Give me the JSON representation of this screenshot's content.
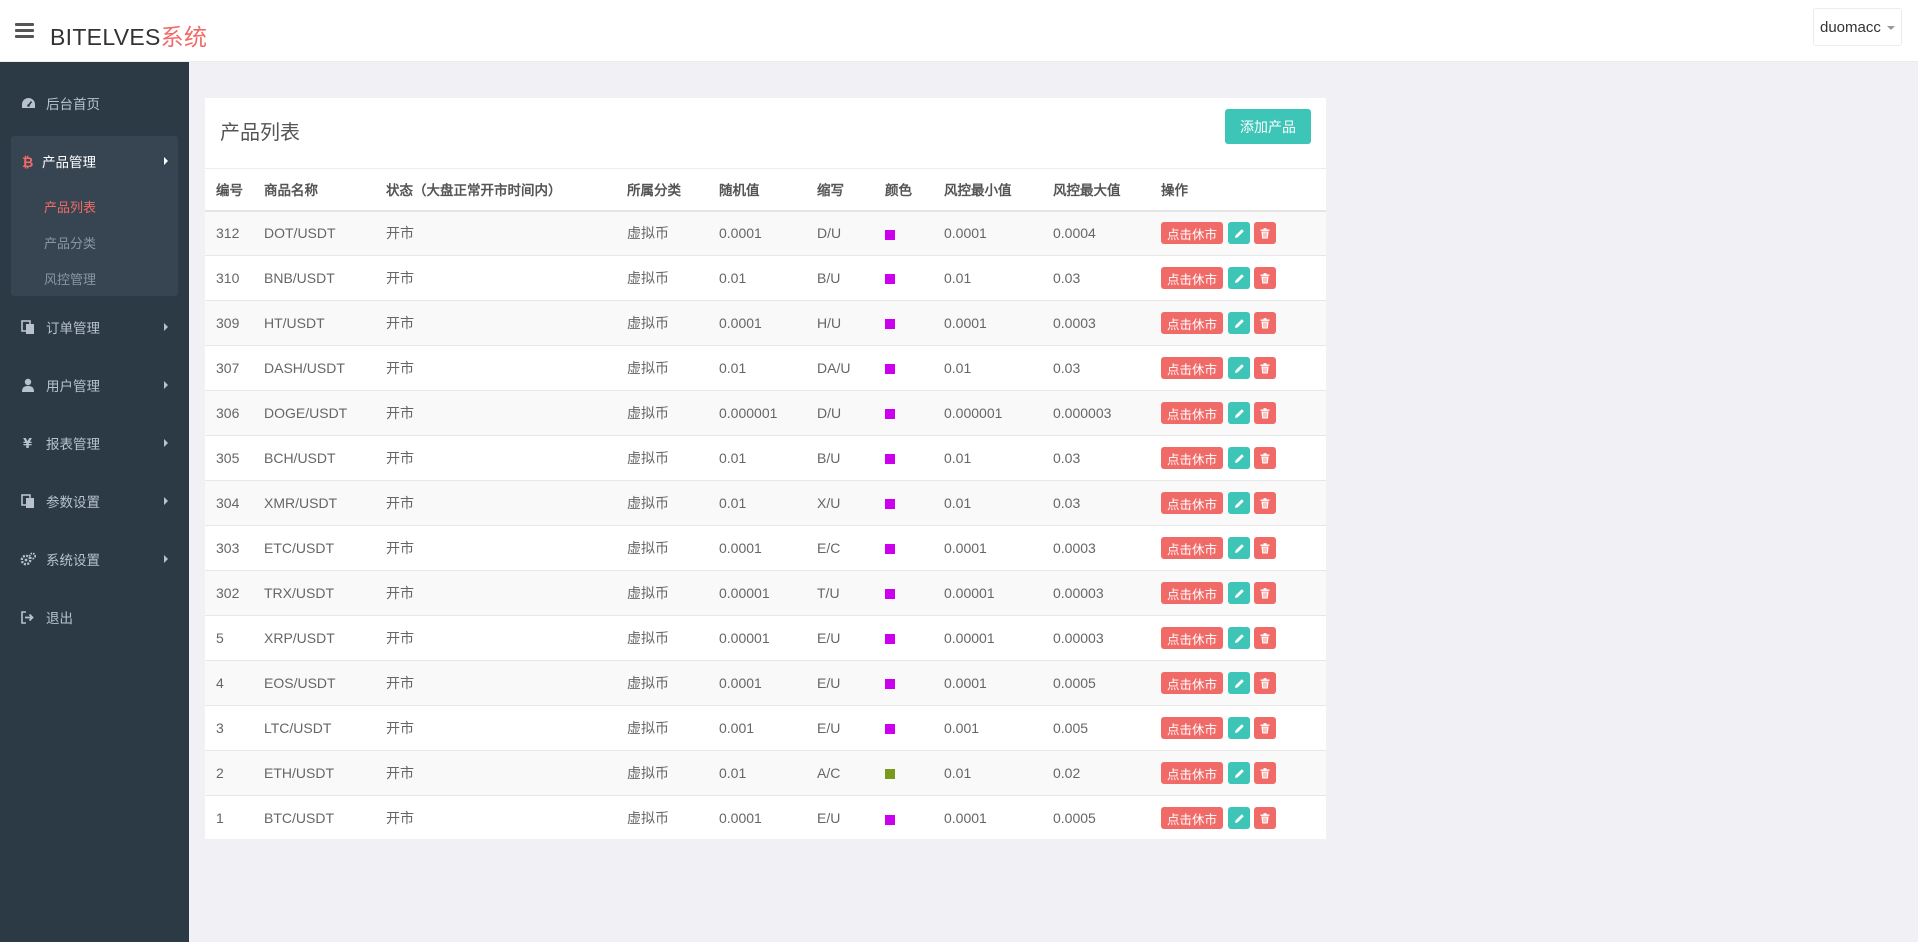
{
  "app": {
    "brand_main": "BITELVES",
    "brand_accent": "系统",
    "user_name": "duomacc"
  },
  "sidebar": {
    "items": [
      {
        "label": "后台首页",
        "icon": "dashboard-icon"
      },
      {
        "label": "产品管理",
        "icon": "bitcoin-icon"
      },
      {
        "label": "订单管理",
        "icon": "copy-icon"
      },
      {
        "label": "用户管理",
        "icon": "user-icon"
      },
      {
        "label": "报表管理",
        "icon": "yen-icon"
      },
      {
        "label": "参数设置",
        "icon": "copy-icon"
      },
      {
        "label": "系统设置",
        "icon": "gears-icon"
      },
      {
        "label": "退出",
        "icon": "sign-out-icon"
      }
    ],
    "sub_items": [
      "产品列表",
      "产品分类",
      "风控管理"
    ]
  },
  "panel": {
    "title": "产品列表",
    "add_label": "添加产品"
  },
  "table": {
    "headers": [
      "编号",
      "商品名称",
      "状态（大盘正常开市时间内）",
      "所属分类",
      "随机值",
      "缩写",
      "颜色",
      "风控最小值",
      "风控最大值",
      "操作"
    ],
    "rest_label": "点击休市",
    "rows": [
      {
        "id": "312",
        "name": "DOT/USDT",
        "status": "开市",
        "category": "虚拟币",
        "random": "0.0001",
        "abbr": "D/U",
        "color": "#cc00ee",
        "min": "0.0001",
        "max": "0.0004"
      },
      {
        "id": "310",
        "name": "BNB/USDT",
        "status": "开市",
        "category": "虚拟币",
        "random": "0.01",
        "abbr": "B/U",
        "color": "#cc00ee",
        "min": "0.01",
        "max": "0.03"
      },
      {
        "id": "309",
        "name": "HT/USDT",
        "status": "开市",
        "category": "虚拟币",
        "random": "0.0001",
        "abbr": "H/U",
        "color": "#cc00ee",
        "min": "0.0001",
        "max": "0.0003"
      },
      {
        "id": "307",
        "name": "DASH/USDT",
        "status": "开市",
        "category": "虚拟币",
        "random": "0.01",
        "abbr": "DA/U",
        "color": "#cc00ee",
        "min": "0.01",
        "max": "0.03"
      },
      {
        "id": "306",
        "name": "DOGE/USDT",
        "status": "开市",
        "category": "虚拟币",
        "random": "0.000001",
        "abbr": "D/U",
        "color": "#cc00ee",
        "min": "0.000001",
        "max": "0.000003"
      },
      {
        "id": "305",
        "name": "BCH/USDT",
        "status": "开市",
        "category": "虚拟币",
        "random": "0.01",
        "abbr": "B/U",
        "color": "#cc00ee",
        "min": "0.01",
        "max": "0.03"
      },
      {
        "id": "304",
        "name": "XMR/USDT",
        "status": "开市",
        "category": "虚拟币",
        "random": "0.01",
        "abbr": "X/U",
        "color": "#cc00ee",
        "min": "0.01",
        "max": "0.03"
      },
      {
        "id": "303",
        "name": "ETC/USDT",
        "status": "开市",
        "category": "虚拟币",
        "random": "0.0001",
        "abbr": "E/C",
        "color": "#cc00ee",
        "min": "0.0001",
        "max": "0.0003"
      },
      {
        "id": "302",
        "name": "TRX/USDT",
        "status": "开市",
        "category": "虚拟币",
        "random": "0.00001",
        "abbr": "T/U",
        "color": "#cc00ee",
        "min": "0.00001",
        "max": "0.00003"
      },
      {
        "id": "5",
        "name": "XRP/USDT",
        "status": "开市",
        "category": "虚拟币",
        "random": "0.00001",
        "abbr": "E/U",
        "color": "#cc00ee",
        "min": "0.00001",
        "max": "0.00003"
      },
      {
        "id": "4",
        "name": "EOS/USDT",
        "status": "开市",
        "category": "虚拟币",
        "random": "0.0001",
        "abbr": "E/U",
        "color": "#cc00ee",
        "min": "0.0001",
        "max": "0.0005"
      },
      {
        "id": "3",
        "name": "LTC/USDT",
        "status": "开市",
        "category": "虚拟币",
        "random": "0.001",
        "abbr": "E/U",
        "color": "#cc00ee",
        "min": "0.001",
        "max": "0.005"
      },
      {
        "id": "2",
        "name": "ETH/USDT",
        "status": "开市",
        "category": "虚拟币",
        "random": "0.01",
        "abbr": "A/C",
        "color": "#7a9a1a",
        "min": "0.01",
        "max": "0.02"
      },
      {
        "id": "1",
        "name": "BTC/USDT",
        "status": "开市",
        "category": "虚拟币",
        "random": "0.0001",
        "abbr": "E/U",
        "color": "#cc00ee",
        "min": "0.0001",
        "max": "0.0005"
      }
    ]
  }
}
